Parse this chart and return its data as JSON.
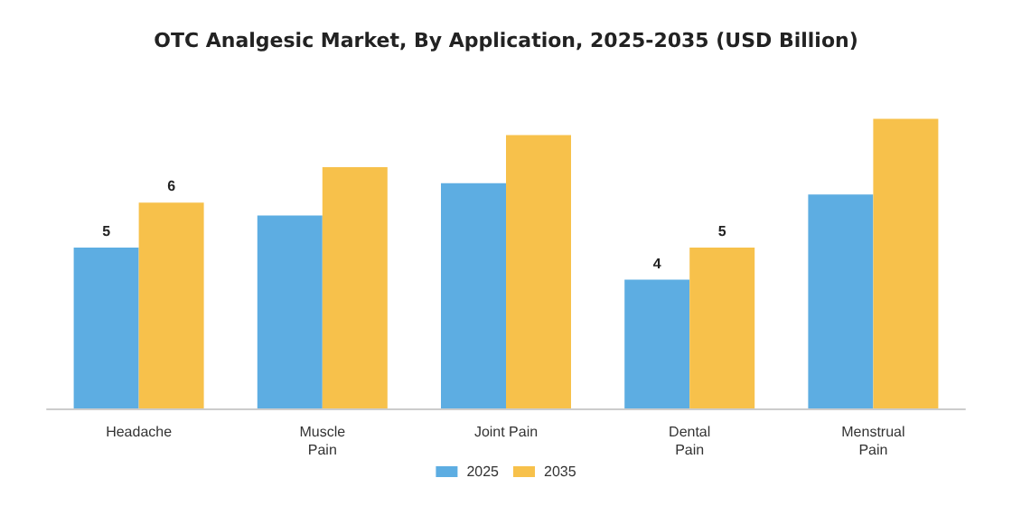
{
  "chart_data": {
    "type": "bar",
    "title": "OTC Analgesic Market, By Application, 2025-2035 (USD Billion)",
    "categories": [
      "Headache",
      "Muscle\nPain",
      "Joint Pain",
      "Dental\nPain",
      "Menstrual\nPain"
    ],
    "series": [
      {
        "name": "2025",
        "color": "#5dade2",
        "values": [
          5,
          6,
          7,
          4,
          6.65
        ],
        "value_labels": [
          "5",
          null,
          null,
          "4",
          null
        ]
      },
      {
        "name": "2035",
        "color": "#f7c14b",
        "values": [
          6.4,
          7.5,
          8.5,
          5,
          9
        ],
        "value_labels": [
          "6",
          null,
          null,
          "5",
          null
        ]
      }
    ],
    "legend": "bottom"
  }
}
